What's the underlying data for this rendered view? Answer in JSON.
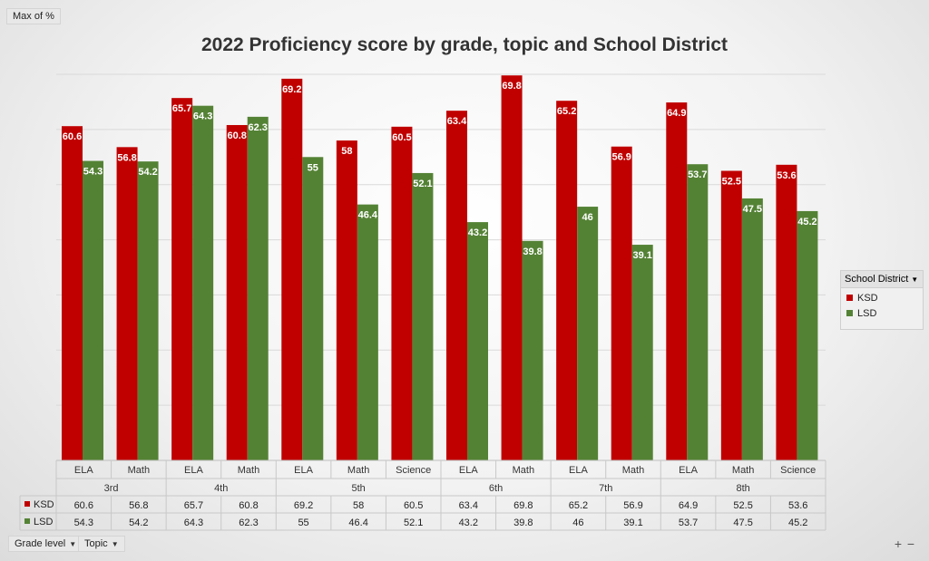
{
  "pivot_fields": {
    "value_field": "Max of %",
    "row_fields": [
      "Grade level",
      "Topic"
    ]
  },
  "legend": {
    "field_label": "School District",
    "items": [
      {
        "label": "KSD",
        "color": "#c00000"
      },
      {
        "label": "LSD",
        "color": "#548235"
      }
    ]
  },
  "zoom": {
    "plus": "+",
    "minus": "−"
  },
  "chart_data": {
    "type": "bar",
    "title": "2022 Proficiency score by grade, topic and School District",
    "xlabel": "",
    "ylabel": "",
    "ylim": [
      0,
      70
    ],
    "grid": true,
    "legend_position": "right",
    "groups": [
      {
        "grade": "3rd",
        "topics": [
          "ELA",
          "Math"
        ]
      },
      {
        "grade": "4th",
        "topics": [
          "ELA",
          "Math"
        ]
      },
      {
        "grade": "5th",
        "topics": [
          "ELA",
          "Math",
          "Science"
        ]
      },
      {
        "grade": "6th",
        "topics": [
          "ELA",
          "Math"
        ]
      },
      {
        "grade": "7th",
        "topics": [
          "ELA",
          "Math"
        ]
      },
      {
        "grade": "8th",
        "topics": [
          "ELA",
          "Math",
          "Science"
        ]
      }
    ],
    "series": [
      {
        "name": "KSD",
        "color": "#c00000",
        "values": [
          60.6,
          56.8,
          65.7,
          60.8,
          69.2,
          58,
          60.5,
          63.4,
          69.8,
          65.2,
          56.9,
          64.9,
          52.5,
          53.6
        ]
      },
      {
        "name": "LSD",
        "color": "#548235",
        "values": [
          54.3,
          54.2,
          64.3,
          62.3,
          55,
          46.4,
          52.1,
          43.2,
          39.8,
          46,
          39.1,
          53.7,
          47.5,
          45.2
        ]
      }
    ]
  }
}
